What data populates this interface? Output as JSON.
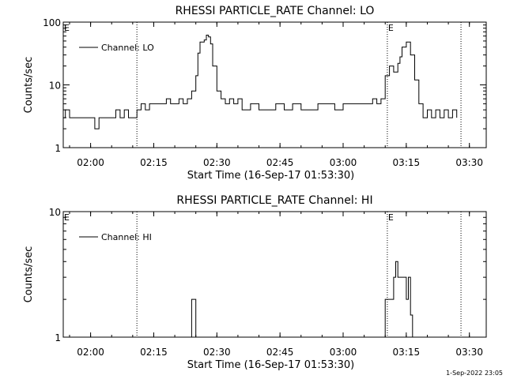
{
  "footer": {
    "timestamp": "1-Sep-2022 23:05"
  },
  "chart_data": [
    {
      "type": "line",
      "title": "RHESSI PARTICLE_RATE Channel: LO",
      "xlabel": "Start Time (16-Sep-17 01:53:30)",
      "ylabel": "Counts/sec",
      "y_scale": "log",
      "xlim": [
        "01:53:30",
        "03:34:00"
      ],
      "ylim": [
        1,
        100
      ],
      "x_ticks": [
        "02:00",
        "02:15",
        "02:30",
        "02:45",
        "03:00",
        "03:15",
        "03:30"
      ],
      "y_ticks": [
        "1",
        "10",
        "100"
      ],
      "legend": {
        "entries": [
          "Channel: LO"
        ],
        "position": "top-left"
      },
      "markers": [
        {
          "label": "E",
          "time": "01:53:30"
        },
        {
          "label": "",
          "time": "02:11:00"
        },
        {
          "label": "E",
          "time": "03:10:30"
        },
        {
          "label": "",
          "time": "03:28:00"
        }
      ],
      "series": [
        {
          "name": "Channel: LO",
          "x": [
            "01:53:30",
            "01:54:00",
            "01:55:00",
            "01:56:00",
            "01:57:00",
            "01:58:00",
            "01:59:00",
            "02:00:00",
            "02:01:00",
            "02:02:00",
            "02:03:00",
            "02:04:00",
            "02:05:00",
            "02:06:00",
            "02:07:00",
            "02:08:00",
            "02:09:00",
            "02:10:00",
            "02:11:00",
            "02:12:00",
            "02:13:00",
            "02:14:00",
            "02:15:00",
            "02:16:00",
            "02:17:00",
            "02:18:00",
            "02:19:00",
            "02:20:00",
            "02:21:00",
            "02:22:00",
            "02:23:00",
            "02:24:00",
            "02:25:00",
            "02:25:30",
            "02:26:00",
            "02:27:00",
            "02:27:30",
            "02:28:00",
            "02:28:30",
            "02:29:00",
            "02:30:00",
            "02:31:00",
            "02:32:00",
            "02:33:00",
            "02:34:00",
            "02:35:00",
            "02:36:00",
            "02:38:00",
            "02:40:00",
            "02:42:00",
            "02:44:00",
            "02:46:00",
            "02:48:00",
            "02:50:00",
            "02:52:00",
            "02:54:00",
            "02:56:00",
            "02:58:00",
            "03:00:00",
            "03:02:00",
            "03:04:00",
            "03:06:00",
            "03:07:00",
            "03:08:00",
            "03:09:00",
            "03:10:00",
            "03:11:00",
            "03:12:00",
            "03:13:00",
            "03:13:30",
            "03:14:00",
            "03:15:00",
            "03:16:00",
            "03:17:00",
            "03:18:00",
            "03:19:00",
            "03:20:00",
            "03:21:00",
            "03:22:00",
            "03:23:00",
            "03:24:00",
            "03:25:00",
            "03:26:00",
            "03:27:00"
          ],
          "values": [
            3,
            4,
            3,
            3,
            3,
            3,
            3,
            3,
            2,
            3,
            3,
            3,
            3,
            4,
            3,
            4,
            3,
            3,
            4,
            5,
            4,
            5,
            5,
            5,
            5,
            6,
            5,
            5,
            6,
            5,
            6,
            8,
            14,
            32,
            48,
            52,
            62,
            58,
            45,
            20,
            8,
            6,
            5,
            6,
            5,
            6,
            4,
            5,
            4,
            4,
            5,
            4,
            5,
            4,
            4,
            5,
            5,
            4,
            5,
            5,
            5,
            5,
            6,
            5,
            6,
            14,
            20,
            16,
            22,
            28,
            40,
            48,
            30,
            12,
            5,
            3,
            4,
            3,
            4,
            3,
            4,
            3,
            4,
            3
          ]
        }
      ]
    },
    {
      "type": "line",
      "title": "RHESSI PARTICLE_RATE Channel: HI",
      "xlabel": "Start Time (16-Sep-17 01:53:30)",
      "ylabel": "Counts/sec",
      "y_scale": "log",
      "xlim": [
        "01:53:30",
        "03:34:00"
      ],
      "ylim": [
        1,
        10
      ],
      "x_ticks": [
        "02:00",
        "02:15",
        "02:30",
        "02:45",
        "03:00",
        "03:15",
        "03:30"
      ],
      "y_ticks": [
        "1",
        "10"
      ],
      "legend": {
        "entries": [
          "Channel: HI"
        ],
        "position": "top-left"
      },
      "markers": [
        {
          "label": "E",
          "time": "01:53:30"
        },
        {
          "label": "",
          "time": "02:11:00"
        },
        {
          "label": "E",
          "time": "03:10:30"
        },
        {
          "label": "",
          "time": "03:28:00"
        }
      ],
      "series": [
        {
          "name": "Channel: HI",
          "x": [
            "01:53:30",
            "02:23:30",
            "02:24:00",
            "02:24:30",
            "02:25:00",
            "02:25:30",
            "03:09:30",
            "03:10:00",
            "03:11:00",
            "03:12:00",
            "03:12:30",
            "03:13:00",
            "03:14:00",
            "03:15:00",
            "03:15:30",
            "03:16:00",
            "03:16:30",
            "03:17:00"
          ],
          "values": [
            1,
            1,
            2,
            2,
            1,
            1,
            1,
            2,
            2,
            3,
            4,
            3,
            3,
            2,
            3,
            1.5,
            1,
            1
          ]
        }
      ]
    }
  ]
}
